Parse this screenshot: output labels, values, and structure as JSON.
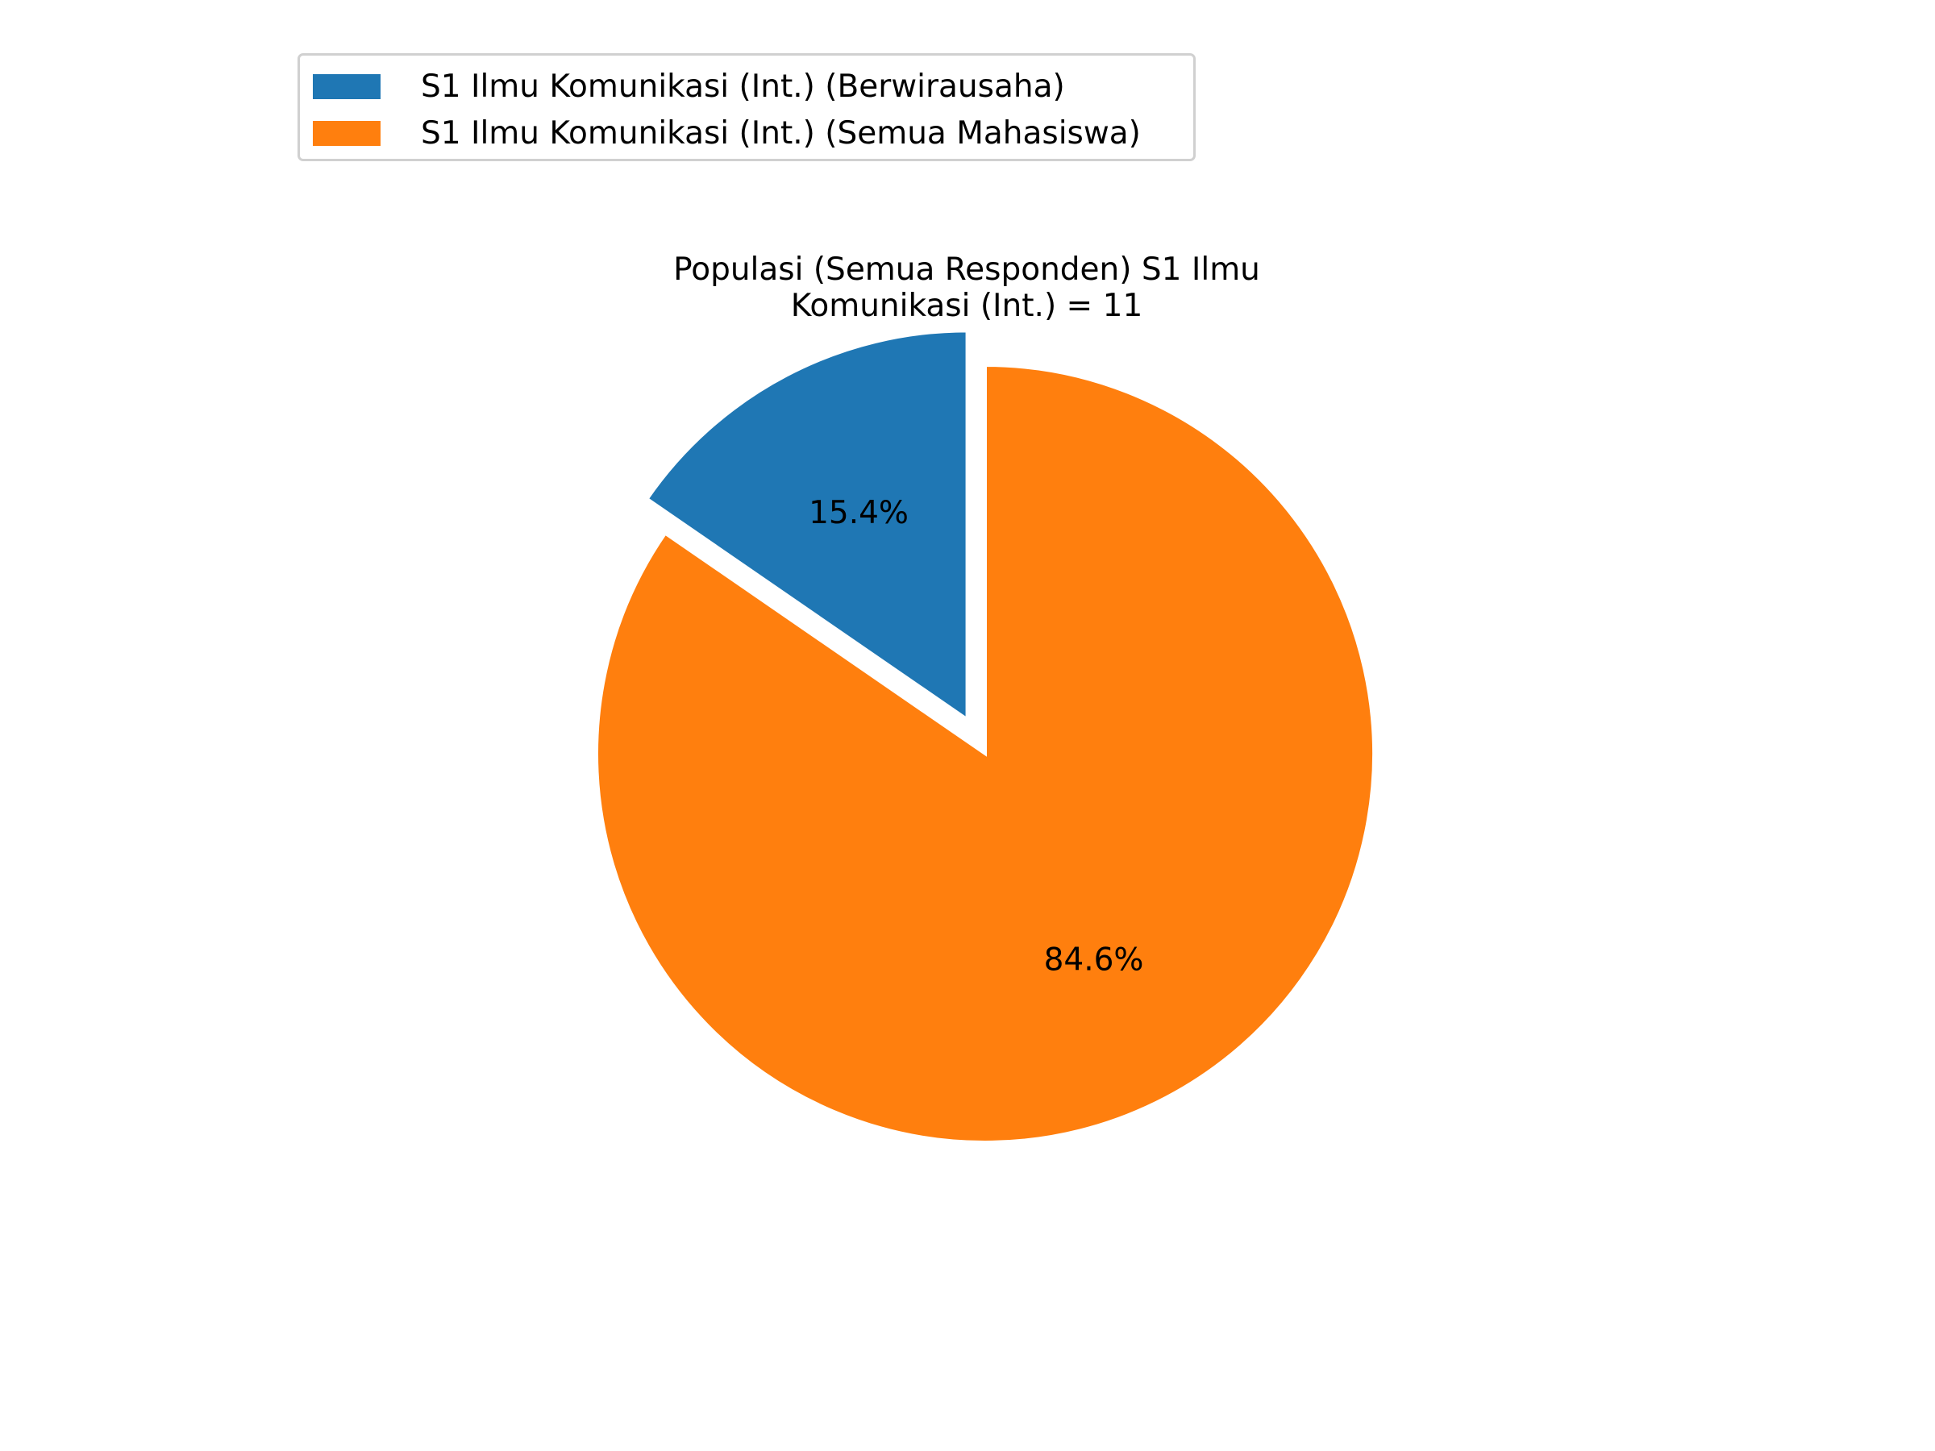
{
  "chart_data": {
    "type": "pie",
    "title": "Populasi (Semua Responden) S1 Ilmu Komunikasi (Int.) = 11",
    "slices": [
      {
        "name": "S1 Ilmu Komunikasi (Int.) (Berwirausaha)",
        "percent": 15.4,
        "label": "15.4%",
        "color": "#1f77b4",
        "exploded": true
      },
      {
        "name": "S1 Ilmu Komunikasi (Int.) (Semua Mahasiswa)",
        "percent": 84.6,
        "label": "84.6%",
        "color": "#ff7f0e",
        "exploded": false
      }
    ],
    "start_angle_deg": 90,
    "direction": "counterclockwise",
    "legend_position": "top-left"
  }
}
